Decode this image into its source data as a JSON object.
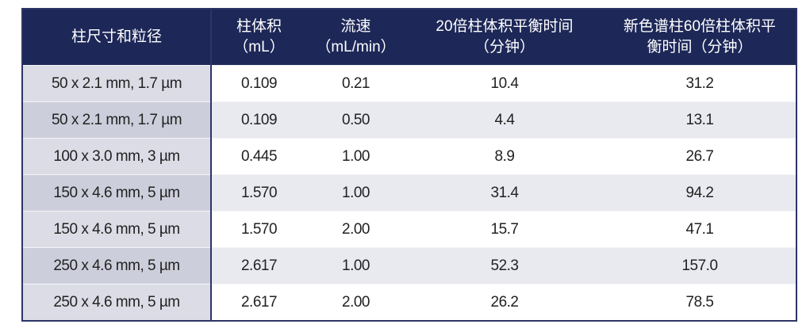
{
  "table": {
    "header": [
      [
        "柱尺寸和粒径"
      ],
      [
        "柱体积",
        "（mL）"
      ],
      [
        "流速",
        "（mL/min）"
      ],
      [
        "20倍柱体积平衡时间",
        "（分钟）"
      ],
      [
        "新色谱柱60倍柱体积平",
        "衡时间（分钟）"
      ]
    ],
    "rows": [
      [
        "50 x 2.1 mm, 1.7 µm",
        "0.109",
        "0.21",
        "10.4",
        "31.2"
      ],
      [
        "50 x 2.1 mm, 1.7 µm",
        "0.109",
        "0.50",
        "4.4",
        "13.1"
      ],
      [
        "100 x 3.0 mm, 3 µm",
        "0.445",
        "1.00",
        "8.9",
        "26.7"
      ],
      [
        "150 x 4.6 mm, 5 µm",
        "1.570",
        "1.00",
        "31.4",
        "94.2"
      ],
      [
        "150 x 4.6 mm, 5 µm",
        "1.570",
        "2.00",
        "15.7",
        "47.1"
      ],
      [
        "250 x 4.6 mm, 5 µm",
        "2.617",
        "1.00",
        "52.3",
        "157.0"
      ],
      [
        "250 x 4.6 mm, 5 µm",
        "2.617",
        "2.00",
        "26.2",
        "78.5"
      ]
    ]
  }
}
